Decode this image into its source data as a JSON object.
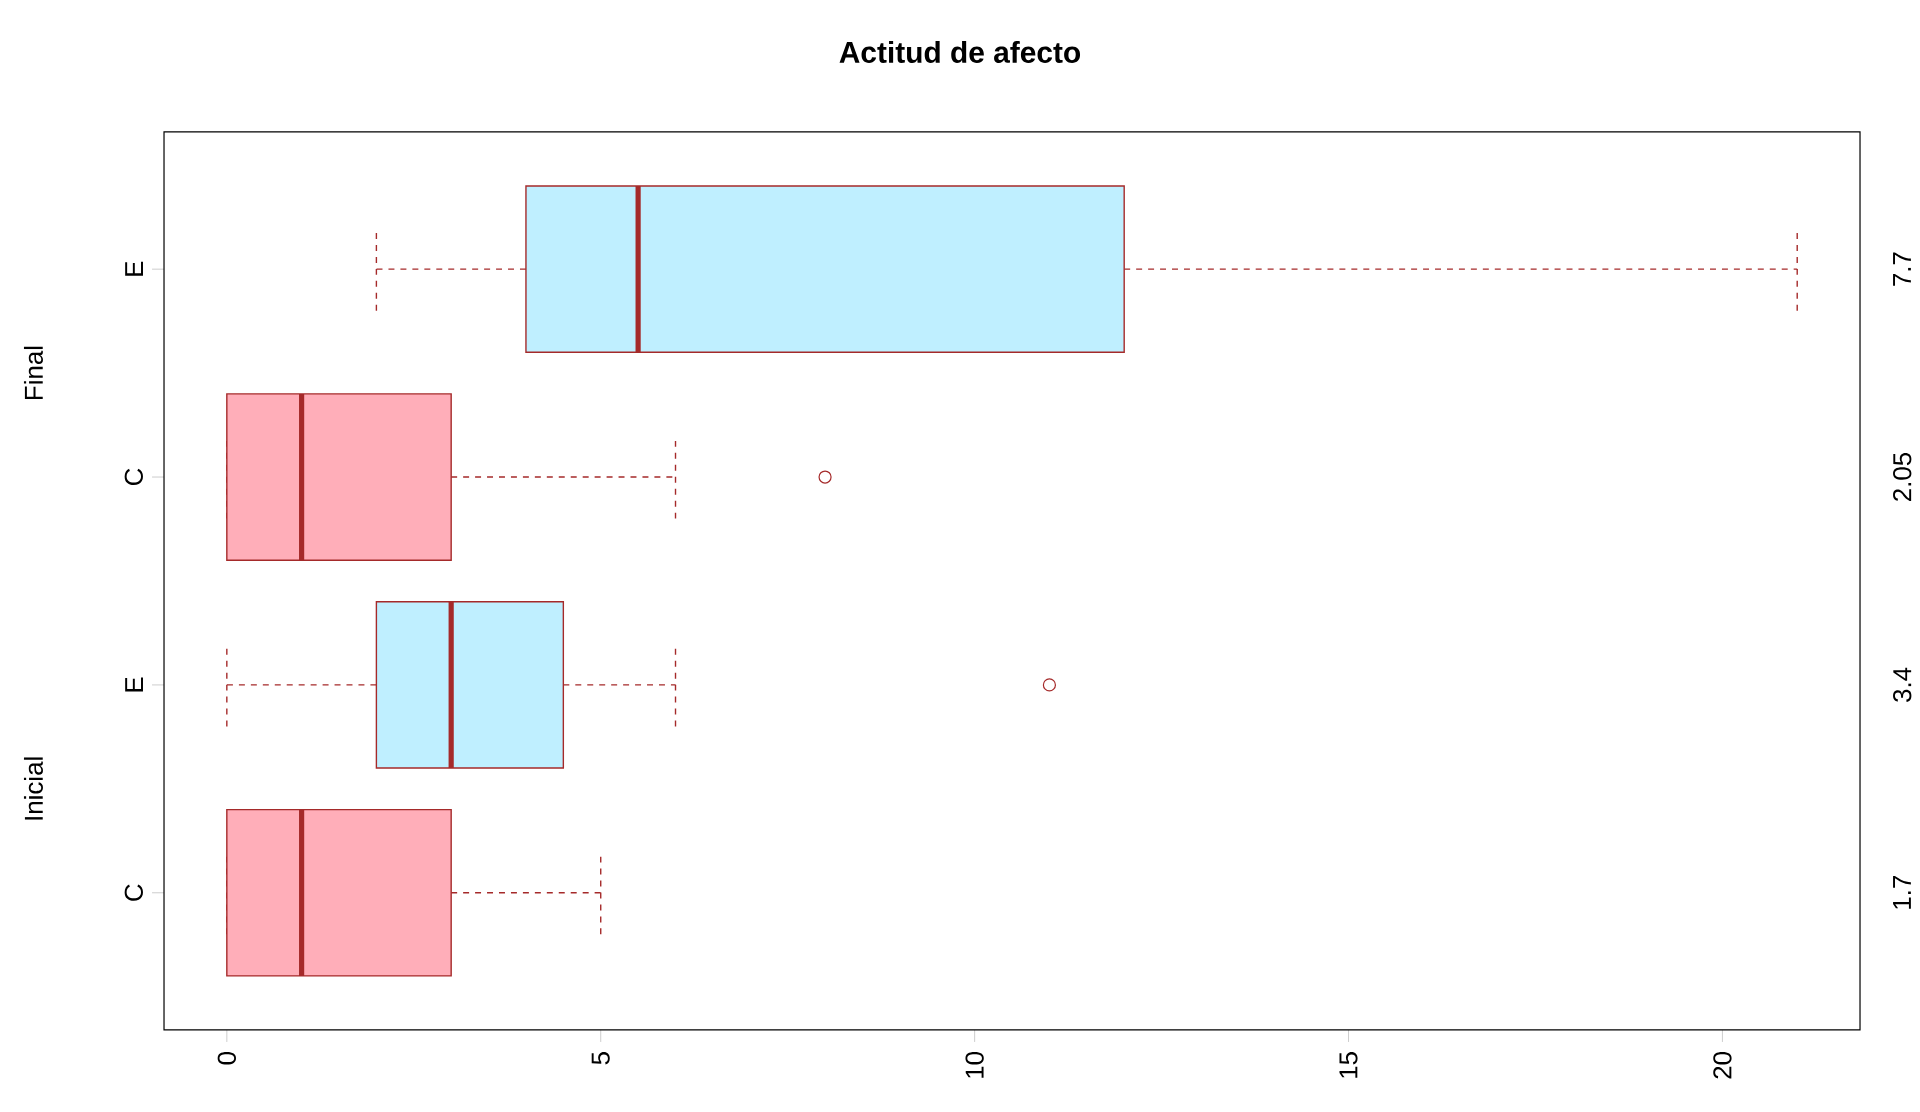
{
  "chart_data": {
    "type": "box",
    "orientation": "horizontal",
    "title": "Actitud de afecto",
    "categories": [
      "E",
      "C",
      "E",
      "C"
    ],
    "y2_categories": [
      "7.7",
      "2.05",
      "3.4",
      "1.7"
    ],
    "annotations": [
      "Final",
      "Inicial"
    ],
    "boxes": [
      {
        "low": 2,
        "q1": 4,
        "median": 5.5,
        "q3": 12,
        "high": 21
      },
      {
        "low": 0,
        "q1": 0,
        "median": 1,
        "q3": 3,
        "high": 6,
        "outliers": [
          8
        ]
      },
      {
        "low": 0,
        "q1": 2,
        "median": 3,
        "q3": 4.5,
        "high": 6,
        "outliers": [
          11
        ]
      },
      {
        "low": 0,
        "q1": 0,
        "median": 1,
        "q3": 3,
        "high": 5
      }
    ],
    "colors": [
      "#bfefff",
      "#ffaeb9",
      "#bfefff",
      "#ffaeb9"
    ],
    "xlim": [
      -0.84,
      21.84
    ],
    "xticks": [
      0,
      5,
      10,
      15,
      20
    ],
    "grid": false
  }
}
